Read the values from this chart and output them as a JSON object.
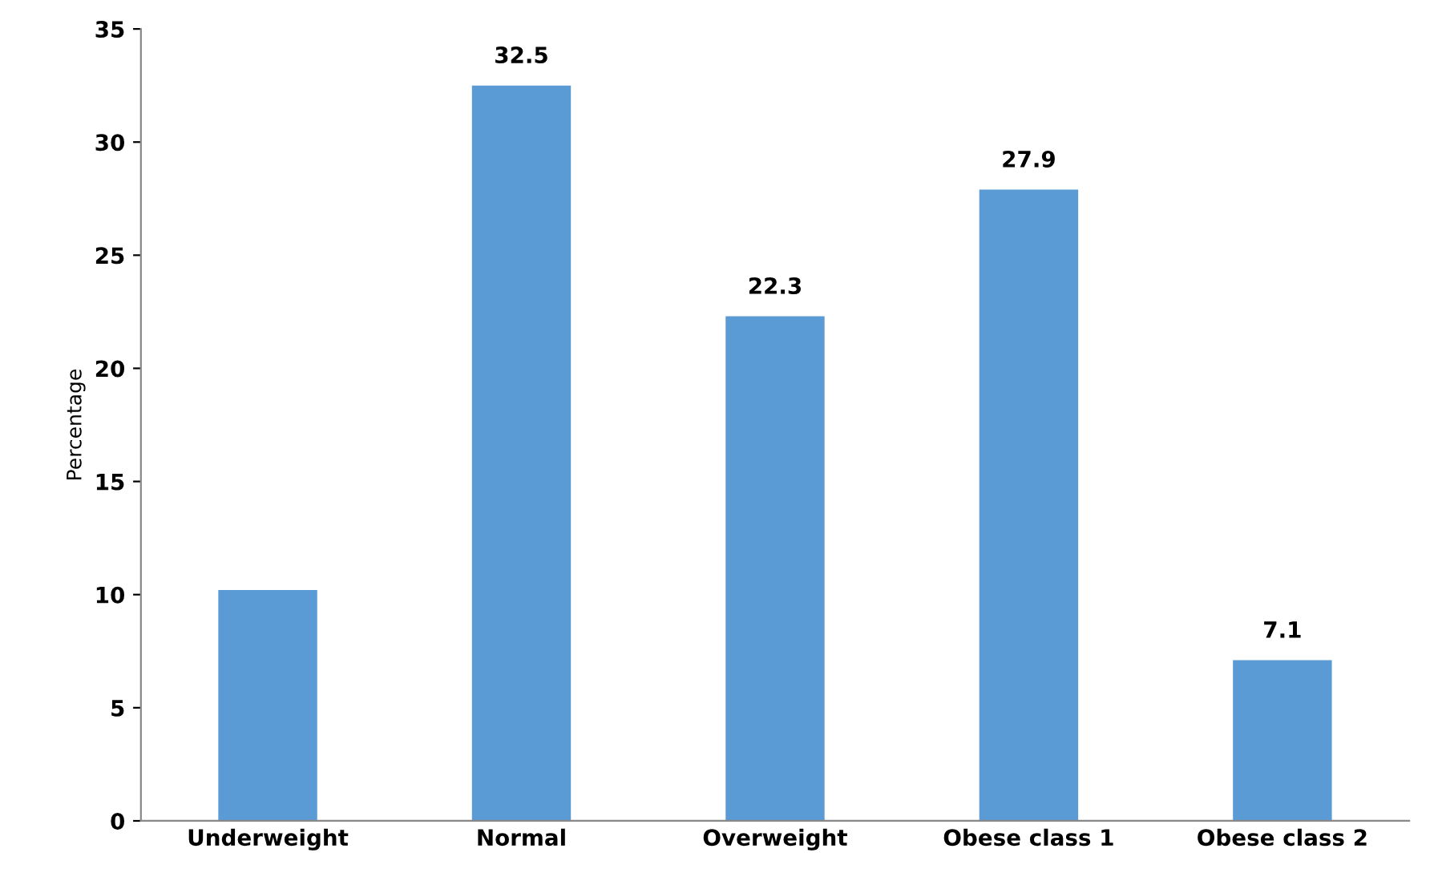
{
  "chart_data": {
    "type": "bar",
    "ylabel": "Percentage",
    "categories": [
      "Underweight",
      "Normal",
      "Overweight",
      "Obese class 1",
      "Obese class 2"
    ],
    "values": [
      10.2,
      32.5,
      22.3,
      27.9,
      7.1
    ],
    "value_labels": [
      null,
      "32.5",
      "22.3",
      "27.9",
      "7.1"
    ],
    "color": "#5b9bd5",
    "ylim": [
      0,
      35
    ],
    "yticks": [
      0,
      5,
      10,
      15,
      20,
      25,
      30,
      35
    ],
    "grid": false,
    "legend": false
  }
}
